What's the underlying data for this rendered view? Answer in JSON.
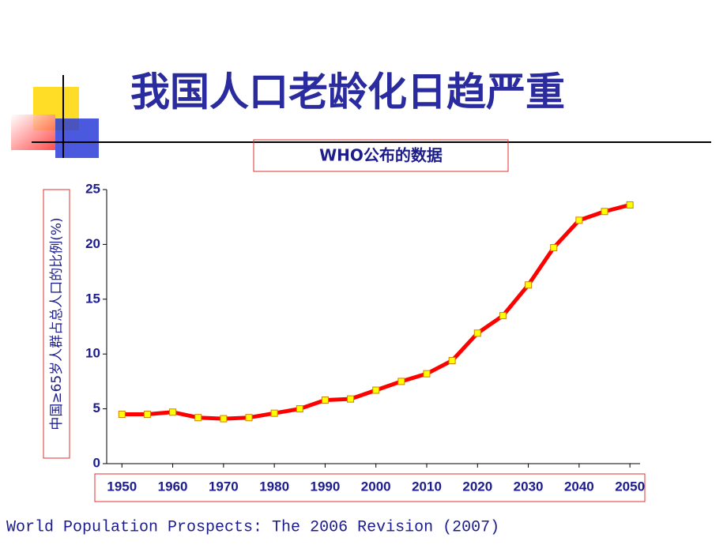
{
  "chart_data": {
    "type": "line",
    "title": "我国人口老龄化日趋严重",
    "subtitle": "WHO公布的数据",
    "y_label": "中国≥65岁人群占总人口的比例(%)",
    "source": "World Population Prospects: The 2006 Revision (2007)",
    "x": [
      1950,
      1955,
      1960,
      1965,
      1970,
      1975,
      1980,
      1985,
      1990,
      1995,
      2000,
      2005,
      2010,
      2015,
      2020,
      2025,
      2030,
      2035,
      2040,
      2045,
      2050
    ],
    "series": [
      {
        "color": "#ff0000",
        "marker_color": "#ffff00",
        "values": [
          4.5,
          4.5,
          4.7,
          4.2,
          4.1,
          4.2,
          4.6,
          5.0,
          5.8,
          5.9,
          6.7,
          7.5,
          8.2,
          9.4,
          11.9,
          13.5,
          16.3,
          19.7,
          22.2,
          23.0,
          23.6
        ]
      }
    ],
    "xlim": [
      1947,
      2052
    ],
    "xticks": [
      1950,
      1960,
      1970,
      1980,
      1990,
      2000,
      2010,
      2020,
      2030,
      2040,
      2050
    ],
    "ylim": [
      0,
      25
    ],
    "yticks": [
      0,
      5,
      10,
      15,
      20,
      25
    ]
  }
}
